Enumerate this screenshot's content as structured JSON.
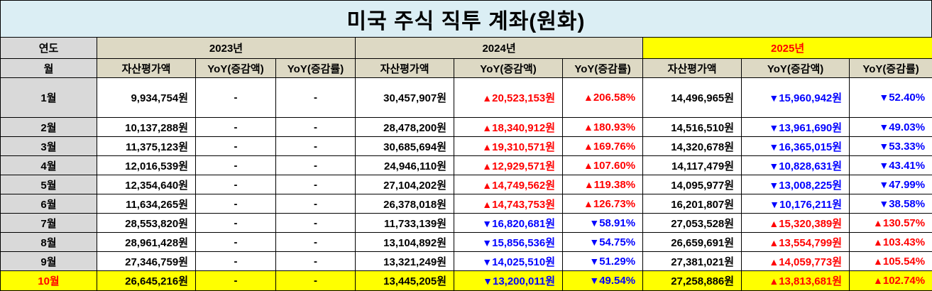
{
  "title": "미국 주식 직투 계좌(원화)",
  "header": {
    "year_label": "연도",
    "month_label": "월",
    "years": [
      "2023년",
      "2024년",
      "2025년"
    ],
    "col_value": "자산평가액",
    "col_yoy_amt": "YoY(증감액)",
    "col_yoy_pct": "YoY(증감률)"
  },
  "rows": [
    {
      "month": "1월",
      "v2023": "9,934,754원",
      "a2023": "-",
      "p2023": "-",
      "v2024": "30,457,907원",
      "a2024": "20,523,153원",
      "p2024": "206.58%",
      "v2025": "14,496,965원",
      "a2025": "15,960,942원",
      "p2025": "52.40%"
    },
    {
      "month": "2월",
      "v2023": "10,137,288원",
      "a2023": "-",
      "p2023": "-",
      "v2024": "28,478,200원",
      "a2024": "18,340,912원",
      "p2024": "180.93%",
      "v2025": "14,516,510원",
      "a2025": "13,961,690원",
      "p2025": "49.03%"
    },
    {
      "month": "3월",
      "v2023": "11,375,123원",
      "a2023": "-",
      "p2023": "-",
      "v2024": "30,685,694원",
      "a2024": "19,310,571원",
      "p2024": "169.76%",
      "v2025": "14,320,678원",
      "a2025": "16,365,015원",
      "p2025": "53.33%"
    },
    {
      "month": "4월",
      "v2023": "12,016,539원",
      "a2023": "-",
      "p2023": "-",
      "v2024": "24,946,110원",
      "a2024": "12,929,571원",
      "p2024": "107.60%",
      "v2025": "14,117,479원",
      "a2025": "10,828,631원",
      "p2025": "43.41%"
    },
    {
      "month": "5월",
      "v2023": "12,354,640원",
      "a2023": "-",
      "p2023": "-",
      "v2024": "27,104,202원",
      "a2024": "14,749,562원",
      "p2024": "119.38%",
      "v2025": "14,095,977원",
      "a2025": "13,008,225원",
      "p2025": "47.99%"
    },
    {
      "month": "6월",
      "v2023": "11,634,265원",
      "a2023": "-",
      "p2023": "-",
      "v2024": "26,378,018원",
      "a2024": "14,743,753원",
      "p2024": "126.73%",
      "v2025": "16,201,807원",
      "a2025": "10,176,211원",
      "p2025": "38.58%"
    },
    {
      "month": "7월",
      "v2023": "28,553,820원",
      "a2023": "-",
      "p2023": "-",
      "v2024": "11,733,139원",
      "a2024": "16,820,681원",
      "p2024": "58.91%",
      "v2025": "27,053,528원",
      "a2025": "15,320,389원",
      "p2025": "130.57%"
    },
    {
      "month": "8월",
      "v2023": "28,961,428원",
      "a2023": "-",
      "p2023": "-",
      "v2024": "13,104,892원",
      "a2024": "15,856,536원",
      "p2024": "54.75%",
      "v2025": "26,659,691원",
      "a2025": "13,554,799원",
      "p2025": "103.43%"
    },
    {
      "month": "9월",
      "v2023": "27,346,759원",
      "a2023": "-",
      "p2023": "-",
      "v2024": "13,321,249원",
      "a2024": "14,025,510원",
      "p2024": "51.29%",
      "v2025": "27,381,021원",
      "a2025": "14,059,773원",
      "p2025": "105.54%"
    },
    {
      "month": "10월",
      "v2023": "26,645,216원",
      "a2023": "-",
      "p2023": "-",
      "v2024": "13,445,205원",
      "a2024": "13,200,011원",
      "p2024": "49.54%",
      "v2025": "27,258,886원",
      "a2025": "13,813,681원",
      "p2025": "102.74%"
    }
  ],
  "colors": {
    "title_bg": "#dbeef4",
    "header_bg": "#ddd9c4",
    "label_bg": "#d9d9d9",
    "highlight": "#ffff00",
    "increase": "#ff0000",
    "decrease": "#0000ff"
  }
}
